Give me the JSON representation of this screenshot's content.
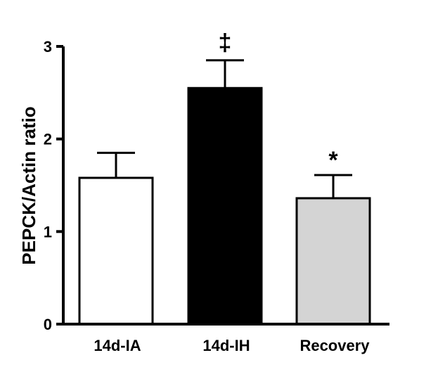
{
  "chart_data": {
    "type": "bar",
    "title": "",
    "xlabel": "",
    "ylabel": "PEPCK/Actin ratio",
    "ylim": [
      0,
      3
    ],
    "yticks": [
      0,
      1,
      2,
      3
    ],
    "grid": false,
    "categories": [
      "14d-IA",
      "14d-IH",
      "Recovery"
    ],
    "values": [
      1.58,
      2.55,
      1.36
    ],
    "errors": [
      0.27,
      0.3,
      0.25
    ],
    "annotations": [
      "",
      "‡",
      "*"
    ],
    "bar_colors": [
      "#ffffff",
      "#000000",
      "#d4d4d4"
    ],
    "edge_color": "#000000"
  }
}
